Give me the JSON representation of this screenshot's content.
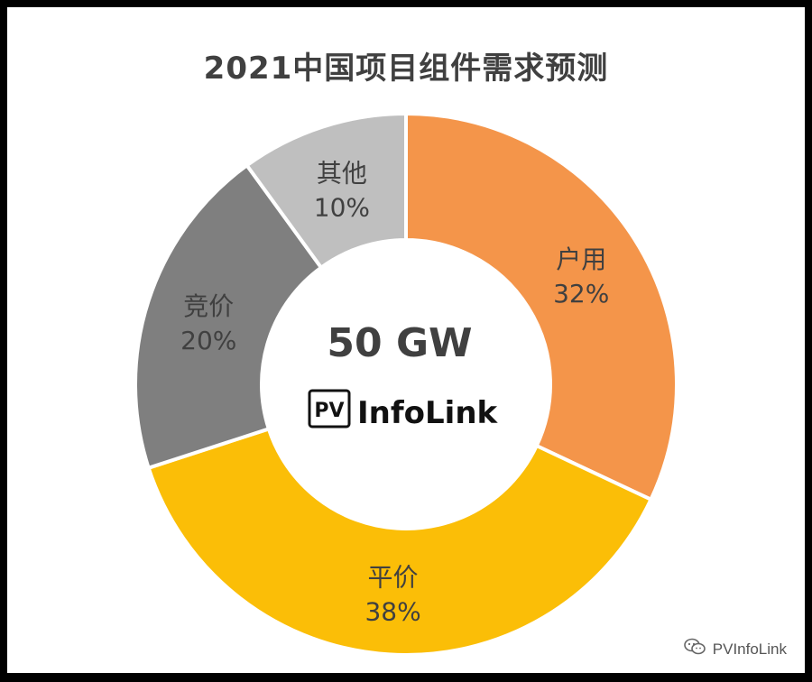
{
  "title": "2021中国项目组件需求预测",
  "center": {
    "value": "50 GW",
    "logo_box": "PV",
    "logo_text": "InfoLink"
  },
  "watermark": "PVInfoLink",
  "chart_data": {
    "type": "pie",
    "title": "2021中国项目组件需求预测",
    "total_label": "50 GW",
    "slices": [
      {
        "label": "户用",
        "value": 32,
        "display": "32%",
        "color": "#F4954A"
      },
      {
        "label": "平价",
        "value": 38,
        "display": "38%",
        "color": "#FBBE07"
      },
      {
        "label": "竞价",
        "value": 20,
        "display": "20%",
        "color": "#7F7F7F"
      },
      {
        "label": "其他",
        "value": 10,
        "display": "10%",
        "color": "#BFBFBF"
      }
    ]
  }
}
